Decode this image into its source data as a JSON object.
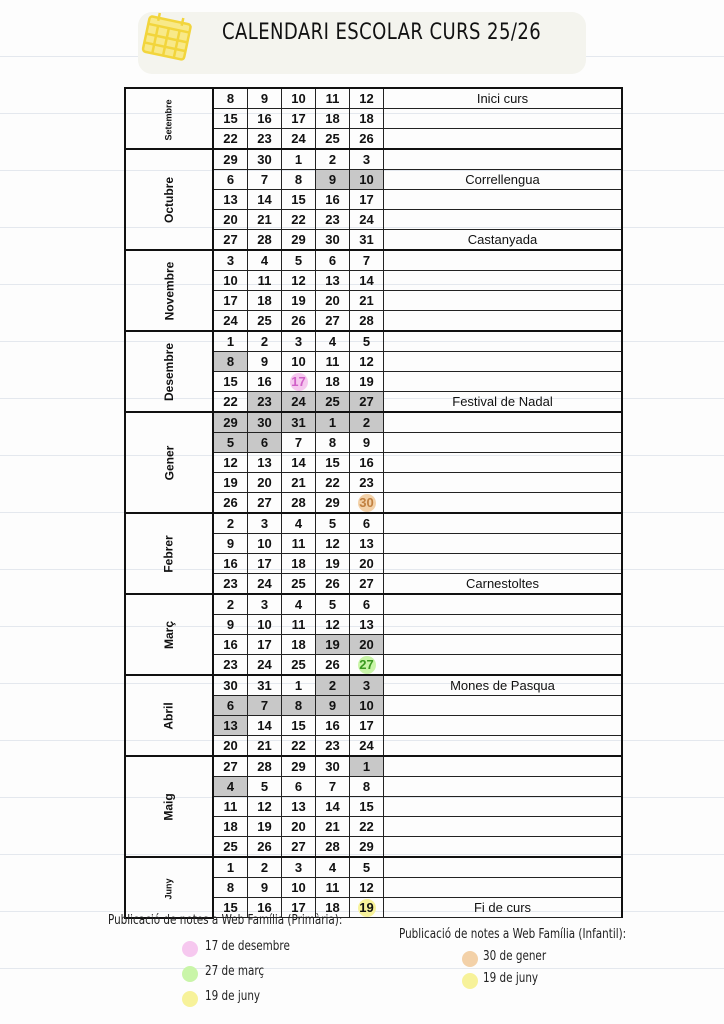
{
  "title": "CALENDARI ESCOLAR CURS 25/26",
  "colors": {
    "holiday": "#c8c8c8",
    "pink": "#f6c8ef",
    "green": "#c9f5a8",
    "orange": "#f3d1a8",
    "yellow": "#f7f29a"
  },
  "months": [
    {
      "name": "Setembre",
      "rows": [
        {
          "days": [
            "8",
            "9",
            "10",
            "11",
            "12"
          ],
          "note": "Inici curs"
        },
        {
          "days": [
            "15",
            "16",
            "17",
            "18",
            "18"
          ]
        },
        {
          "days": [
            "22",
            "23",
            "24",
            "25",
            "26"
          ]
        }
      ]
    },
    {
      "name": "Octubre",
      "rows": [
        {
          "days": [
            "29",
            "30",
            "1",
            "2",
            "3"
          ]
        },
        {
          "days": [
            "6",
            "7",
            "8",
            "9",
            "10"
          ],
          "marks": [
            "",
            "",
            "",
            "g",
            "g"
          ],
          "note": "Correllengua"
        },
        {
          "days": [
            "13",
            "14",
            "15",
            "16",
            "17"
          ]
        },
        {
          "days": [
            "20",
            "21",
            "22",
            "23",
            "24"
          ]
        },
        {
          "days": [
            "27",
            "28",
            "29",
            "30",
            "31"
          ],
          "note": "Castanyada"
        }
      ]
    },
    {
      "name": "Novembre",
      "rows": [
        {
          "days": [
            "3",
            "4",
            "5",
            "6",
            "7"
          ]
        },
        {
          "days": [
            "10",
            "11",
            "12",
            "13",
            "14"
          ]
        },
        {
          "days": [
            "17",
            "18",
            "19",
            "20",
            "21"
          ]
        },
        {
          "days": [
            "24",
            "25",
            "26",
            "27",
            "28"
          ]
        }
      ]
    },
    {
      "name": "Desembre",
      "rows": [
        {
          "days": [
            "1",
            "2",
            "3",
            "4",
            "5"
          ]
        },
        {
          "days": [
            "8",
            "9",
            "10",
            "11",
            "12"
          ],
          "marks": [
            "g",
            "",
            "",
            "",
            ""
          ]
        },
        {
          "days": [
            "15",
            "16",
            "17",
            "18",
            "19"
          ],
          "marks": [
            "",
            "",
            "pink",
            "",
            ""
          ]
        },
        {
          "days": [
            "22",
            "23",
            "24",
            "25",
            "27"
          ],
          "marks": [
            "",
            "g",
            "g",
            "g",
            "g"
          ],
          "note": "Festival de Nadal"
        }
      ]
    },
    {
      "name": "Gener",
      "rows": [
        {
          "days": [
            "29",
            "30",
            "31",
            "1",
            "2"
          ],
          "marks": [
            "g",
            "g",
            "g",
            "g",
            "g"
          ]
        },
        {
          "days": [
            "5",
            "6",
            "7",
            "8",
            "9"
          ],
          "marks": [
            "g",
            "g",
            "",
            "",
            ""
          ]
        },
        {
          "days": [
            "12",
            "13",
            "14",
            "15",
            "16"
          ]
        },
        {
          "days": [
            "19",
            "20",
            "21",
            "22",
            "23"
          ]
        },
        {
          "days": [
            "26",
            "27",
            "28",
            "29",
            "30"
          ],
          "marks": [
            "",
            "",
            "",
            "",
            "orange"
          ]
        }
      ]
    },
    {
      "name": "Febrer",
      "rows": [
        {
          "days": [
            "2",
            "3",
            "4",
            "5",
            "6"
          ]
        },
        {
          "days": [
            "9",
            "10",
            "11",
            "12",
            "13"
          ]
        },
        {
          "days": [
            "16",
            "17",
            "18",
            "19",
            "20"
          ]
        },
        {
          "days": [
            "23",
            "24",
            "25",
            "26",
            "27"
          ],
          "note": "Carnestoltes"
        }
      ]
    },
    {
      "name": "Març",
      "rows": [
        {
          "days": [
            "2",
            "3",
            "4",
            "5",
            "6"
          ]
        },
        {
          "days": [
            "9",
            "10",
            "11",
            "12",
            "13"
          ]
        },
        {
          "days": [
            "16",
            "17",
            "18",
            "19",
            "20"
          ],
          "marks": [
            "",
            "",
            "",
            "g",
            "g"
          ]
        },
        {
          "days": [
            "23",
            "24",
            "25",
            "26",
            "27"
          ],
          "marks": [
            "",
            "",
            "",
            "",
            "green"
          ]
        }
      ]
    },
    {
      "name": "Abril",
      "rows": [
        {
          "days": [
            "30",
            "31",
            "1",
            "2",
            "3"
          ],
          "marks": [
            "",
            "",
            "",
            "g",
            "g"
          ],
          "note": "Mones de Pasqua"
        },
        {
          "days": [
            "6",
            "7",
            "8",
            "9",
            "10"
          ],
          "marks": [
            "g",
            "g",
            "g",
            "g",
            "g"
          ]
        },
        {
          "days": [
            "13",
            "14",
            "15",
            "16",
            "17"
          ],
          "marks": [
            "g",
            "",
            "",
            "",
            ""
          ]
        },
        {
          "days": [
            "20",
            "21",
            "22",
            "23",
            "24"
          ]
        }
      ]
    },
    {
      "name": "Maig",
      "rows": [
        {
          "days": [
            "27",
            "28",
            "29",
            "30",
            "1"
          ],
          "marks": [
            "",
            "",
            "",
            "",
            "g"
          ]
        },
        {
          "days": [
            "4",
            "5",
            "6",
            "7",
            "8"
          ],
          "marks": [
            "g",
            "",
            "",
            "",
            ""
          ]
        },
        {
          "days": [
            "11",
            "12",
            "13",
            "14",
            "15"
          ]
        },
        {
          "days": [
            "18",
            "19",
            "20",
            "21",
            "22"
          ]
        },
        {
          "days": [
            "25",
            "26",
            "27",
            "28",
            "29"
          ]
        }
      ]
    },
    {
      "name": "Juny",
      "rows": [
        {
          "days": [
            "1",
            "2",
            "3",
            "4",
            "5"
          ]
        },
        {
          "days": [
            "8",
            "9",
            "10",
            "11",
            "12"
          ]
        },
        {
          "days": [
            "15",
            "16",
            "17",
            "18",
            "19"
          ],
          "marks": [
            "",
            "",
            "",
            "",
            "yellow"
          ],
          "note": "Fi de curs"
        }
      ]
    }
  ],
  "legend_primaria": {
    "title": "Publicació de notes a Web Família (Primària):",
    "items": [
      {
        "label": "17 de desembre",
        "color": "pink"
      },
      {
        "label": "27 de març",
        "color": "green"
      },
      {
        "label": "19 de juny",
        "color": "yellow"
      }
    ]
  },
  "legend_infantil": {
    "title": "Publicació de notes a Web Família (Infantil):",
    "items": [
      {
        "label": "30 de gener",
        "color": "orange"
      },
      {
        "label": "19 de juny",
        "color": "yellow"
      }
    ]
  }
}
